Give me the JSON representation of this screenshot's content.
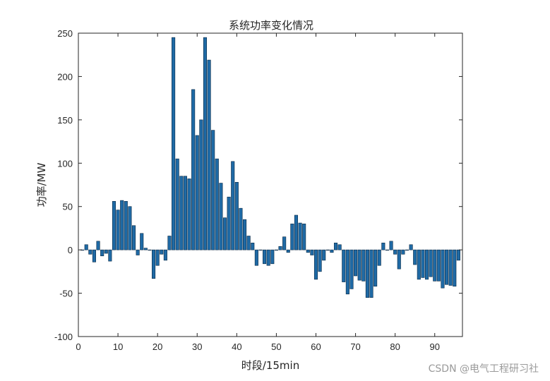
{
  "chart_data": {
    "type": "bar",
    "title": "系统功率变化情况",
    "xlabel": "时段/15min",
    "ylabel": "功率/MW",
    "xlim": [
      0,
      97
    ],
    "ylim": [
      -100,
      250
    ],
    "xticks": [
      0,
      10,
      20,
      30,
      40,
      50,
      60,
      70,
      80,
      90
    ],
    "yticks": [
      -100,
      -50,
      0,
      50,
      100,
      150,
      200,
      250
    ],
    "bar_color": "#1f6aa5",
    "grid": false,
    "x": [
      1,
      2,
      3,
      4,
      5,
      6,
      7,
      8,
      9,
      10,
      11,
      12,
      13,
      14,
      15,
      16,
      17,
      18,
      19,
      20,
      21,
      22,
      23,
      24,
      25,
      26,
      27,
      28,
      29,
      30,
      31,
      32,
      33,
      34,
      35,
      36,
      37,
      38,
      39,
      40,
      41,
      42,
      43,
      44,
      45,
      46,
      47,
      48,
      49,
      50,
      51,
      52,
      53,
      54,
      55,
      56,
      57,
      58,
      59,
      60,
      61,
      62,
      63,
      64,
      65,
      66,
      67,
      68,
      69,
      70,
      71,
      72,
      73,
      74,
      75,
      76,
      77,
      78,
      79,
      80,
      81,
      82,
      83,
      84,
      85,
      86,
      87,
      88,
      89,
      90,
      91,
      92,
      93,
      94,
      95,
      96
    ],
    "values": [
      0,
      6,
      -5,
      -14,
      10,
      -7,
      -4,
      -13,
      56,
      46,
      57,
      56,
      50,
      28,
      -6,
      19,
      2,
      0,
      -33,
      -18,
      -5,
      -12,
      16,
      245,
      105,
      85,
      85,
      82,
      185,
      132,
      150,
      245,
      219,
      138,
      105,
      77,
      37,
      61,
      102,
      78,
      48,
      35,
      16,
      8,
      -18,
      0,
      -16,
      -18,
      -16,
      0,
      4,
      15,
      -3,
      30,
      40,
      31,
      30,
      -3,
      -6,
      -34,
      -25,
      -12,
      0,
      -3,
      8,
      6,
      -37,
      -51,
      -45,
      -30,
      -35,
      -36,
      -55,
      -55,
      -42,
      -18,
      8,
      0,
      10,
      -5,
      -22,
      -5,
      0,
      6,
      -17,
      -34,
      -32,
      -34,
      -31,
      -36,
      -36,
      -44,
      -40,
      -41,
      -42,
      -12
    ]
  },
  "watermark": "CSDN @电气工程研习社"
}
